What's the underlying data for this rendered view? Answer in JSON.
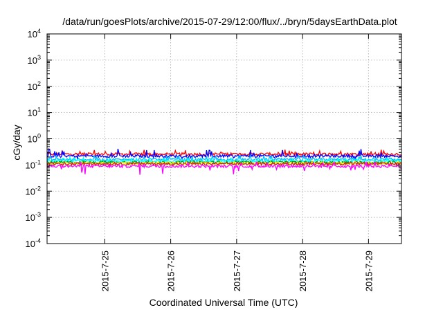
{
  "chart_data": {
    "type": "line",
    "title": "/data/run/goesPlots/archive/2015-07-29/12:00/flux/../bryn/5daysEarthData.plot",
    "xlabel": "Coordinated Universal Time (UTC)",
    "ylabel": "cGy/day",
    "yscale": "log",
    "ylim": [
      0.0001,
      10000
    ],
    "yticks": [
      {
        "base": "10",
        "exp": "4",
        "value": 10000
      },
      {
        "base": "10",
        "exp": "3",
        "value": 1000
      },
      {
        "base": "10",
        "exp": "2",
        "value": 100
      },
      {
        "base": "10",
        "exp": "1",
        "value": 10
      },
      {
        "base": "10",
        "exp": "0",
        "value": 1
      },
      {
        "base": "10",
        "exp": "-1",
        "value": 0.1
      },
      {
        "base": "10",
        "exp": "-2",
        "value": 0.01
      },
      {
        "base": "10",
        "exp": "-3",
        "value": 0.001
      },
      {
        "base": "10",
        "exp": "-4",
        "value": 0.0001
      }
    ],
    "xlim": [
      "2015-07-24 03:00",
      "2015-07-29 12:00"
    ],
    "xticks": [
      "2015-7-25",
      "2015-7-26",
      "2015-7-27",
      "2015-7-28",
      "2015-7-29"
    ],
    "grid": true,
    "series": [
      {
        "color": "#ff0000",
        "level": 0.26,
        "spike": 1.5,
        "dip": 0.85
      },
      {
        "color": "#0000ff",
        "level": 0.22,
        "spike": 1.9,
        "dip": 0.8
      },
      {
        "color": "#00c0ff",
        "level": 0.16,
        "spike": 1.5,
        "dip": 0.85
      },
      {
        "color": "#00ffff",
        "level": 0.14,
        "spike": 1.4,
        "dip": 0.88
      },
      {
        "color": "#00a000",
        "level": 0.125,
        "spike": 1.15,
        "dip": 0.9
      },
      {
        "color": "#ffff00",
        "level": 0.115,
        "spike": 1.2,
        "dip": 0.9
      },
      {
        "color": "#d02020",
        "level": 0.11,
        "spike": 1.15,
        "dip": 0.9
      },
      {
        "color": "#ff00ff",
        "level": 0.09,
        "spike": 1.5,
        "dip": 0.45
      }
    ]
  }
}
